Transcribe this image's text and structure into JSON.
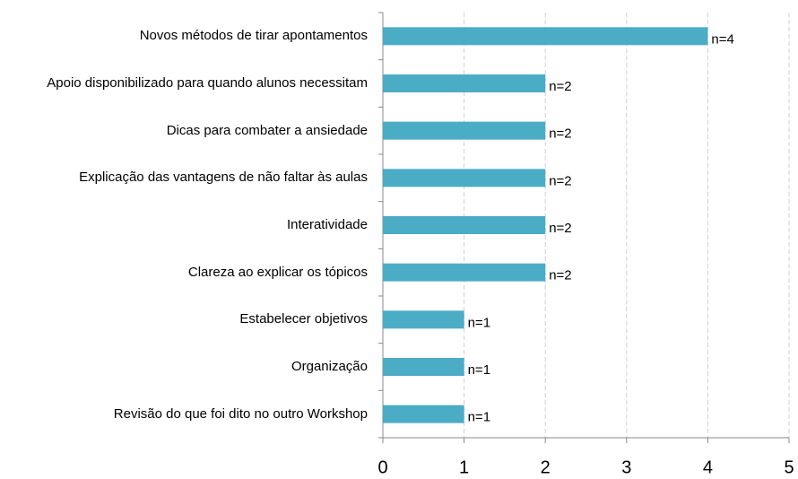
{
  "chart_data": {
    "type": "bar",
    "orientation": "horizontal",
    "categories": [
      "Novos métodos de tirar apontamentos",
      "Apoio disponibilizado para quando alunos necessitam",
      "Dicas para combater a ansiedade",
      "Explicação das vantagens de não faltar às aulas",
      "Interatividade",
      "Clareza ao explicar os tópicos",
      "Estabelecer objetivos",
      "Organização",
      "Revisão do que foi dito no outro Workshop"
    ],
    "values": [
      4,
      2,
      2,
      2,
      2,
      2,
      1,
      1,
      1
    ],
    "value_labels": [
      "n=4",
      "n=2",
      "n=2",
      "n=2",
      "n=2",
      "n=2",
      "n=1",
      "n=1",
      "n=1"
    ],
    "color": "#4bacc6",
    "xlim": [
      0,
      5
    ],
    "xticks": [
      0,
      1,
      2,
      3,
      4,
      5
    ],
    "grid": true
  }
}
